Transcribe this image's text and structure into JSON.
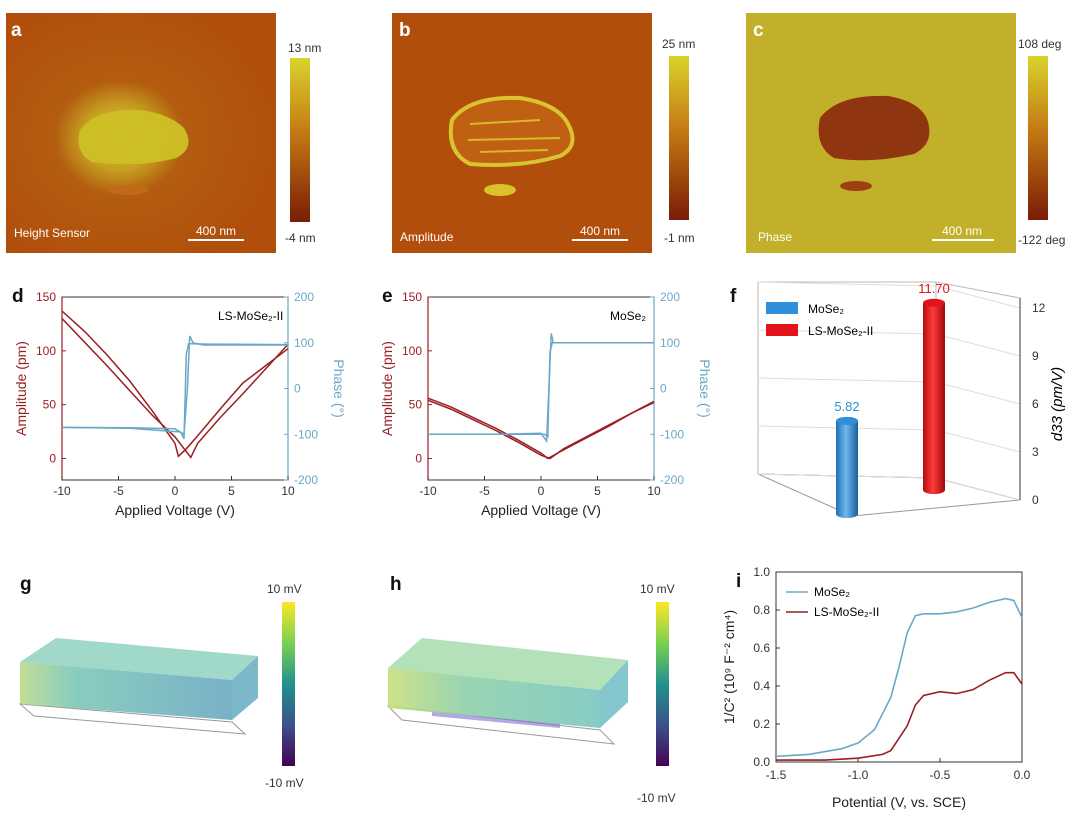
{
  "panels": {
    "a": {
      "letter": "a",
      "caption": "Height Sensor",
      "scale_bar": "400 nm",
      "cbar_max": "13 nm",
      "cbar_min": "-4 nm"
    },
    "b": {
      "letter": "b",
      "caption": "Amplitude",
      "scale_bar": "400 nm",
      "cbar_max": "25 nm",
      "cbar_min": "-1 nm"
    },
    "c": {
      "letter": "c",
      "caption": "Phase",
      "scale_bar": "400 nm",
      "cbar_max": "108 deg",
      "cbar_min": "-122 deg"
    },
    "d": {
      "letter": "d",
      "label": "LS-MoSe₂-II"
    },
    "e": {
      "letter": "e",
      "label": "MoSe₂"
    },
    "f": {
      "letter": "f"
    },
    "g": {
      "letter": "g",
      "cbar_max": "10 mV",
      "cbar_min": "-10 mV"
    },
    "h": {
      "letter": "h",
      "cbar_max": "10 mV",
      "cbar_min": "-10 mV"
    },
    "i": {
      "letter": "i"
    }
  },
  "colors": {
    "amplitude": "#9a1e24",
    "phase": "#6aa8c8",
    "mose2_bar": "#2f8fd8",
    "ls_bar": "#e0141a",
    "afm_dark": "#8c2a08",
    "afm_light": "#d6c82a"
  },
  "chart_data": [
    {
      "id": "d",
      "type": "line",
      "xlabel": "Applied Voltage (V)",
      "ylabel": "Amplitude (pm)",
      "y2label": "Phase (°)",
      "xlim": [
        -10,
        10
      ],
      "ylim": [
        -20,
        150
      ],
      "y2lim": [
        -200,
        200
      ],
      "xticks": [
        "-10",
        "-5",
        "0",
        "5",
        "10"
      ],
      "yticks": [
        "0",
        "50",
        "100",
        "150"
      ],
      "y2ticks": [
        "-200",
        "-100",
        "0",
        "100",
        "200"
      ],
      "series": [
        {
          "axis": "left",
          "x": [
            -10,
            -8,
            -6,
            -4,
            -2,
            0,
            0.3,
            1,
            2,
            4,
            6,
            8,
            10
          ],
          "y": [
            137,
            118,
            96,
            72,
            44,
            14,
            2,
            9,
            21,
            46,
            70,
            86,
            102
          ]
        },
        {
          "axis": "left",
          "x": [
            -10,
            -8,
            -6,
            -4,
            -2,
            0,
            1.4,
            2,
            4,
            6,
            8,
            10
          ],
          "y": [
            130,
            108,
            86,
            63,
            40,
            20,
            1,
            14,
            38,
            60,
            83,
            106
          ]
        },
        {
          "axis": "right",
          "x": [
            -10,
            -4,
            0,
            0.8,
            1.1,
            1.3,
            1.6,
            2.5,
            10
          ],
          "y": [
            -85,
            -86,
            -88,
            -100,
            0,
            115,
            100,
            95,
            95
          ]
        },
        {
          "axis": "right",
          "x": [
            -10,
            -4,
            0.5,
            0.8,
            1.0,
            1.2,
            1.5,
            3,
            10
          ],
          "y": [
            -85,
            -87,
            -95,
            -110,
            75,
            98,
            98,
            97,
            96
          ]
        }
      ]
    },
    {
      "id": "e",
      "type": "line",
      "xlabel": "Applied Voltage (V)",
      "ylabel": "Amplitude (pm)",
      "y2label": "Phase (°)",
      "xlim": [
        -10,
        10
      ],
      "ylim": [
        -20,
        150
      ],
      "y2lim": [
        -200,
        200
      ],
      "xticks": [
        "-10",
        "-5",
        "0",
        "5",
        "10"
      ],
      "yticks": [
        "0",
        "50",
        "100",
        "150"
      ],
      "y2ticks": [
        "-200",
        "-100",
        "0",
        "100",
        "200"
      ],
      "series": [
        {
          "axis": "left",
          "x": [
            -10,
            -8,
            -6,
            -4,
            -2,
            0,
            0.6,
            2,
            4,
            6,
            8,
            10
          ],
          "y": [
            56,
            48,
            38,
            28,
            17,
            5,
            0,
            8,
            19,
            30,
            42,
            53
          ]
        },
        {
          "axis": "left",
          "x": [
            -10,
            -8,
            -6,
            -4,
            -2,
            0,
            0.8,
            2,
            4,
            6,
            8,
            10
          ],
          "y": [
            54,
            46,
            36,
            26,
            15,
            3,
            0,
            9,
            20,
            31,
            42,
            52
          ]
        },
        {
          "axis": "right",
          "x": [
            -10,
            -4,
            0,
            0.5,
            0.7,
            0.9,
            1.1,
            3,
            10
          ],
          "y": [
            -100,
            -100,
            -98,
            -115,
            0,
            120,
            100,
            100,
            100
          ]
        },
        {
          "axis": "right",
          "x": [
            -10,
            -4,
            0.3,
            0.6,
            0.8,
            1.0,
            3,
            10
          ],
          "y": [
            -100,
            -100,
            -100,
            -105,
            80,
            100,
            100,
            100
          ]
        }
      ]
    },
    {
      "id": "f",
      "type": "bar",
      "categories": [
        "MoSe₂",
        "LS-MoSe₂-II"
      ],
      "values": [
        5.82,
        11.7
      ],
      "value_labels": [
        "5.82",
        "11.70"
      ],
      "legend": [
        "MoSe₂",
        "LS-MoSe₂-II"
      ],
      "legend_position": "top-left",
      "zlabel": "d33 (pm/V)",
      "zlim": [
        0,
        12
      ],
      "zticks": [
        "0",
        "3",
        "6",
        "9",
        "12"
      ]
    },
    {
      "id": "i",
      "type": "line",
      "xlabel": "Potential (V, vs. SCE)",
      "ylabel": "1/C² (10⁹ F⁻² cm⁴)",
      "xlim": [
        -1.5,
        0.0
      ],
      "ylim": [
        0.0,
        1.0
      ],
      "xticks": [
        "-1.5",
        "-1.0",
        "-0.5",
        "0.0"
      ],
      "yticks": [
        "0.0",
        "0.2",
        "0.4",
        "0.6",
        "0.8",
        "1.0"
      ],
      "legend_position": "top-left",
      "series": [
        {
          "name": "MoSe₂",
          "x": [
            -1.5,
            -1.3,
            -1.1,
            -1.0,
            -0.9,
            -0.8,
            -0.75,
            -0.7,
            -0.65,
            -0.6,
            -0.5,
            -0.4,
            -0.3,
            -0.2,
            -0.1,
            -0.05,
            0.0
          ],
          "y": [
            0.03,
            0.04,
            0.07,
            0.1,
            0.17,
            0.34,
            0.5,
            0.68,
            0.77,
            0.78,
            0.78,
            0.79,
            0.81,
            0.84,
            0.86,
            0.85,
            0.76
          ]
        },
        {
          "name": "LS-MoSe₂-II",
          "x": [
            -1.5,
            -1.2,
            -1.0,
            -0.85,
            -0.8,
            -0.7,
            -0.65,
            -0.6,
            -0.5,
            -0.4,
            -0.3,
            -0.2,
            -0.1,
            -0.05,
            0.0
          ],
          "y": [
            0.01,
            0.01,
            0.02,
            0.04,
            0.06,
            0.19,
            0.3,
            0.35,
            0.37,
            0.36,
            0.38,
            0.43,
            0.47,
            0.47,
            0.41
          ]
        }
      ]
    }
  ]
}
